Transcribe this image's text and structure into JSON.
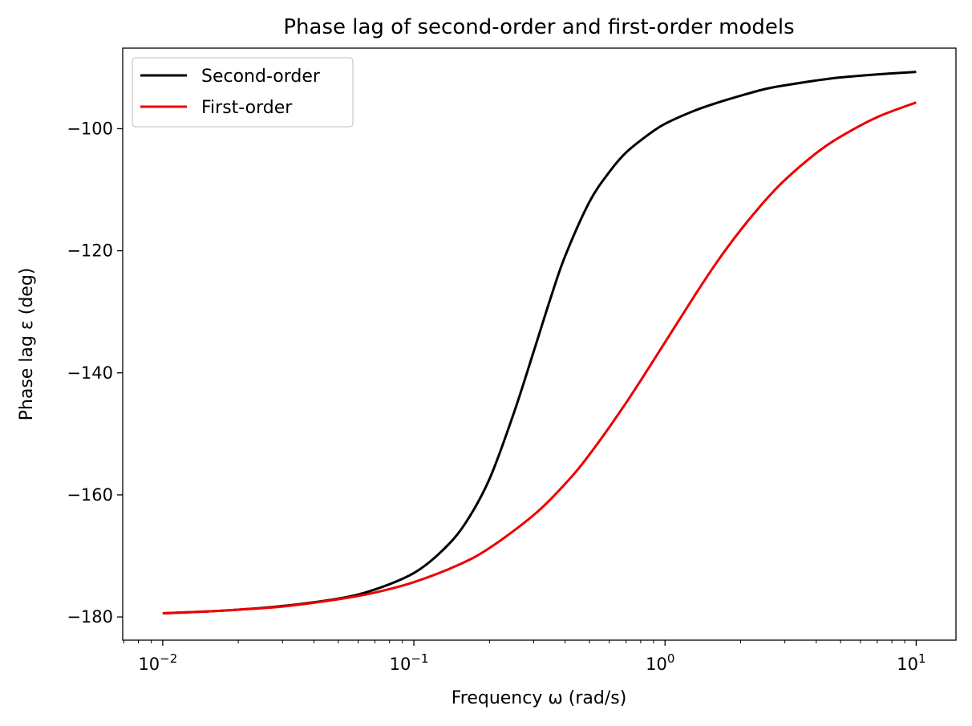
{
  "chart_data": {
    "type": "line",
    "title": "Phase lag of second-order and first-order models",
    "xlabel": "Frequency ω (rad/s)",
    "ylabel": "Phase lag ε (deg)",
    "xscale": "log",
    "xlim": [
      0.00693,
      14.4
    ],
    "ylim": [
      -183.8,
      -86.8
    ],
    "x_ticks": [
      {
        "value": 0.01,
        "base": "10",
        "exp": "−2"
      },
      {
        "value": 0.1,
        "base": "10",
        "exp": "−1"
      },
      {
        "value": 1,
        "base": "10",
        "exp": "0"
      },
      {
        "value": 10,
        "base": "10",
        "exp": "1"
      }
    ],
    "y_ticks": [
      {
        "value": -180,
        "label": "−180"
      },
      {
        "value": -160,
        "label": "−160"
      },
      {
        "value": -140,
        "label": "−140"
      },
      {
        "value": -120,
        "label": "−120"
      },
      {
        "value": -100,
        "label": "−100"
      }
    ],
    "legend_position": "top-left",
    "grid": false,
    "series": [
      {
        "name": "Second-order",
        "color": "#000000",
        "x": [
          0.01,
          0.015,
          0.02,
          0.03,
          0.05,
          0.07,
          0.1,
          0.13,
          0.16,
          0.2,
          0.25,
          0.3,
          0.35,
          0.4,
          0.5,
          0.6,
          0.7,
          0.85,
          1.0,
          1.3,
          1.6,
          2.0,
          2.5,
          3.0,
          4.0,
          5.0,
          7.0,
          10.0
        ],
        "y": [
          -179.4,
          -179.1,
          -178.8,
          -178.2,
          -177.0,
          -175.5,
          -172.8,
          -169.1,
          -164.7,
          -157.4,
          -146.6,
          -136.5,
          -127.8,
          -120.9,
          -112.0,
          -107.1,
          -103.9,
          -101.1,
          -99.2,
          -97.1,
          -95.8,
          -94.6,
          -93.5,
          -92.9,
          -92.1,
          -91.6,
          -91.1,
          -90.7
        ]
      },
      {
        "name": "First-order",
        "color": "#ee0000",
        "x": [
          0.01,
          0.015,
          0.02,
          0.03,
          0.05,
          0.07,
          0.1,
          0.15,
          0.2,
          0.3,
          0.4,
          0.5,
          0.7,
          1.0,
          1.3,
          1.6,
          2.0,
          2.5,
          3.0,
          4.0,
          5.0,
          7.0,
          10.0
        ],
        "y": [
          -179.4,
          -179.1,
          -178.8,
          -178.3,
          -177.1,
          -176.0,
          -174.3,
          -171.5,
          -168.7,
          -163.3,
          -158.2,
          -153.4,
          -144.9,
          -135.0,
          -127.6,
          -122.0,
          -116.6,
          -111.8,
          -108.4,
          -104.0,
          -101.3,
          -98.1,
          -95.7
        ]
      }
    ]
  }
}
